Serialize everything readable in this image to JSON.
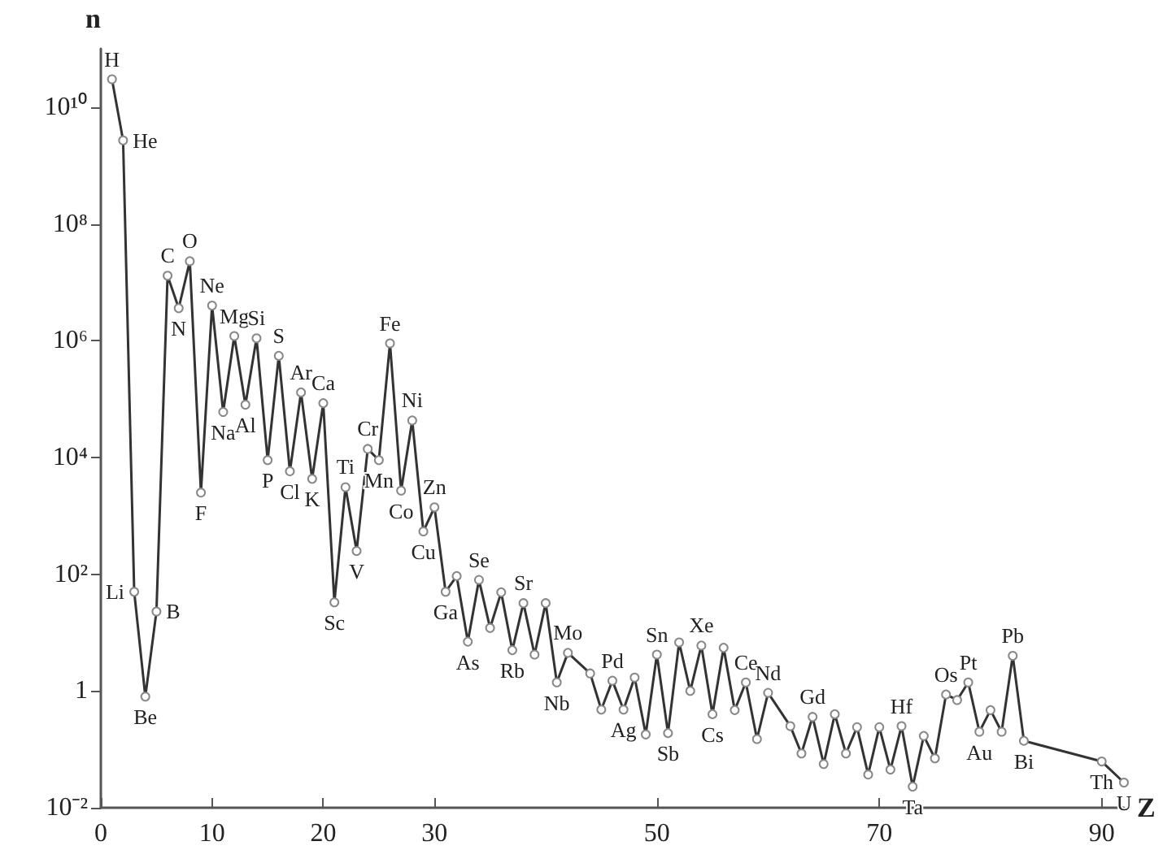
{
  "chart_data": {
    "type": "line",
    "xlabel": "Z",
    "ylabel": "n",
    "log": "y",
    "grid": false,
    "marker": "circle",
    "line_style": "solid",
    "xlim": [
      0,
      92
    ],
    "xticks": [
      0,
      10,
      20,
      30,
      50,
      70,
      90
    ],
    "ylim": [
      0.01,
      100000000000
    ],
    "yticks": [
      {
        "value": 0.01,
        "label": "10⁻²"
      },
      1,
      {
        "value": 100,
        "label": "10²"
      },
      {
        "value": 10000,
        "label": "10⁴"
      },
      {
        "value": 1000000,
        "label": "10⁶"
      },
      {
        "value": 100000000,
        "label": "10⁸"
      },
      {
        "value": 10000000000,
        "label": "10¹⁰"
      }
    ],
    "series": [
      {
        "color": "#333333",
        "x": [
          1,
          2,
          3,
          4,
          5,
          6,
          7,
          8,
          9,
          10,
          11,
          12,
          13,
          14,
          15,
          16,
          17,
          18,
          19,
          20,
          21,
          22,
          23,
          24,
          25,
          26,
          27,
          28,
          29,
          30,
          31,
          32,
          33,
          34,
          35,
          36,
          37,
          38,
          39,
          40,
          41,
          42,
          44,
          45,
          46,
          47,
          48,
          49,
          50,
          51,
          52,
          53,
          54,
          55,
          56,
          57,
          58,
          59,
          60,
          62,
          63,
          64,
          65,
          66,
          67,
          68,
          69,
          70,
          71,
          72,
          73,
          74,
          75,
          76,
          77,
          78,
          79,
          80,
          81,
          82,
          83,
          90,
          92
        ],
        "values": [
          30000000000,
          2700000000,
          50,
          0.8,
          23,
          13000000,
          3600000,
          23000000,
          2500,
          4000000,
          60000,
          1200000,
          80000,
          1100000,
          9000,
          550000,
          5800,
          130000,
          4300,
          85000,
          33,
          3100,
          250,
          14000,
          9000,
          900000,
          2700,
          43000,
          540,
          1400,
          50,
          93,
          7,
          80,
          12,
          49,
          5,
          32,
          4.2,
          32,
          1.4,
          4.5,
          2,
          0.48,
          1.5,
          0.48,
          1.7,
          0.18,
          4.2,
          0.19,
          6.8,
          1,
          6,
          0.4,
          5.5,
          0.47,
          1.4,
          0.15,
          0.93,
          0.25,
          0.085,
          0.36,
          0.056,
          0.4,
          0.085,
          0.24,
          0.037,
          0.24,
          0.045,
          0.25,
          0.023,
          0.17,
          0.07,
          0.87,
          0.7,
          1.4,
          0.2,
          0.47,
          0.2,
          4,
          0.14,
          0.062,
          0.027
        ]
      }
    ],
    "annotations": [
      {
        "text": "H",
        "x": 1,
        "y": 30000000000
      },
      {
        "text": "He",
        "x": 2,
        "y": 2700000000
      },
      {
        "text": "Li",
        "x": 3,
        "y": 50
      },
      {
        "text": "Be",
        "x": 4,
        "y": 0.8
      },
      {
        "text": "B",
        "x": 5,
        "y": 23
      },
      {
        "text": "C",
        "x": 6,
        "y": 13000000
      },
      {
        "text": "N",
        "x": 7,
        "y": 3600000
      },
      {
        "text": "O",
        "x": 8,
        "y": 23000000
      },
      {
        "text": "F",
        "x": 9,
        "y": 2500
      },
      {
        "text": "Ne",
        "x": 10,
        "y": 4000000
      },
      {
        "text": "Na",
        "x": 11,
        "y": 60000
      },
      {
        "text": "Mg",
        "x": 12,
        "y": 1200000
      },
      {
        "text": "Al",
        "x": 13,
        "y": 80000
      },
      {
        "text": "Si",
        "x": 14,
        "y": 1100000
      },
      {
        "text": "P",
        "x": 15,
        "y": 9000
      },
      {
        "text": "S",
        "x": 16,
        "y": 550000
      },
      {
        "text": "Cl",
        "x": 17,
        "y": 5800
      },
      {
        "text": "Ar",
        "x": 18,
        "y": 130000
      },
      {
        "text": "K",
        "x": 19,
        "y": 4300
      },
      {
        "text": "Ca",
        "x": 20,
        "y": 85000
      },
      {
        "text": "Sc",
        "x": 21,
        "y": 33
      },
      {
        "text": "Ti",
        "x": 22,
        "y": 3100
      },
      {
        "text": "V",
        "x": 23,
        "y": 250
      },
      {
        "text": "Cr",
        "x": 24,
        "y": 14000
      },
      {
        "text": "Mn",
        "x": 25,
        "y": 9000
      },
      {
        "text": "Fe",
        "x": 26,
        "y": 900000
      },
      {
        "text": "Co",
        "x": 27,
        "y": 2700
      },
      {
        "text": "Ni",
        "x": 28,
        "y": 43000
      },
      {
        "text": "Cu",
        "x": 29,
        "y": 540
      },
      {
        "text": "Zn",
        "x": 30,
        "y": 1400
      },
      {
        "text": "Ga",
        "x": 31,
        "y": 50
      },
      {
        "text": "As",
        "x": 33,
        "y": 7
      },
      {
        "text": "Se",
        "x": 34,
        "y": 80
      },
      {
        "text": "Rb",
        "x": 37,
        "y": 5
      },
      {
        "text": "Sr",
        "x": 38,
        "y": 32
      },
      {
        "text": "Nb",
        "x": 41,
        "y": 1.4
      },
      {
        "text": "Mo",
        "x": 42,
        "y": 4.5
      },
      {
        "text": "Pd",
        "x": 46,
        "y": 1.5
      },
      {
        "text": "Ag",
        "x": 47,
        "y": 0.48
      },
      {
        "text": "Sn",
        "x": 50,
        "y": 4.2
      },
      {
        "text": "Sb",
        "x": 51,
        "y": 0.19
      },
      {
        "text": "Xe",
        "x": 54,
        "y": 6
      },
      {
        "text": "Cs",
        "x": 55,
        "y": 0.4
      },
      {
        "text": "Ce",
        "x": 58,
        "y": 1.4
      },
      {
        "text": "Nd",
        "x": 60,
        "y": 0.93
      },
      {
        "text": "Gd",
        "x": 64,
        "y": 0.36
      },
      {
        "text": "Hf",
        "x": 72,
        "y": 0.25
      },
      {
        "text": "Ta",
        "x": 73,
        "y": 0.023
      },
      {
        "text": "Os",
        "x": 76,
        "y": 0.87
      },
      {
        "text": "Pt",
        "x": 78,
        "y": 1.4
      },
      {
        "text": "Au",
        "x": 79,
        "y": 0.2
      },
      {
        "text": "Pb",
        "x": 82,
        "y": 4
      },
      {
        "text": "Bi",
        "x": 83,
        "y": 0.14
      },
      {
        "text": "Th",
        "x": 90,
        "y": 0.062
      },
      {
        "text": "U",
        "x": 92,
        "y": 0.027
      }
    ]
  }
}
